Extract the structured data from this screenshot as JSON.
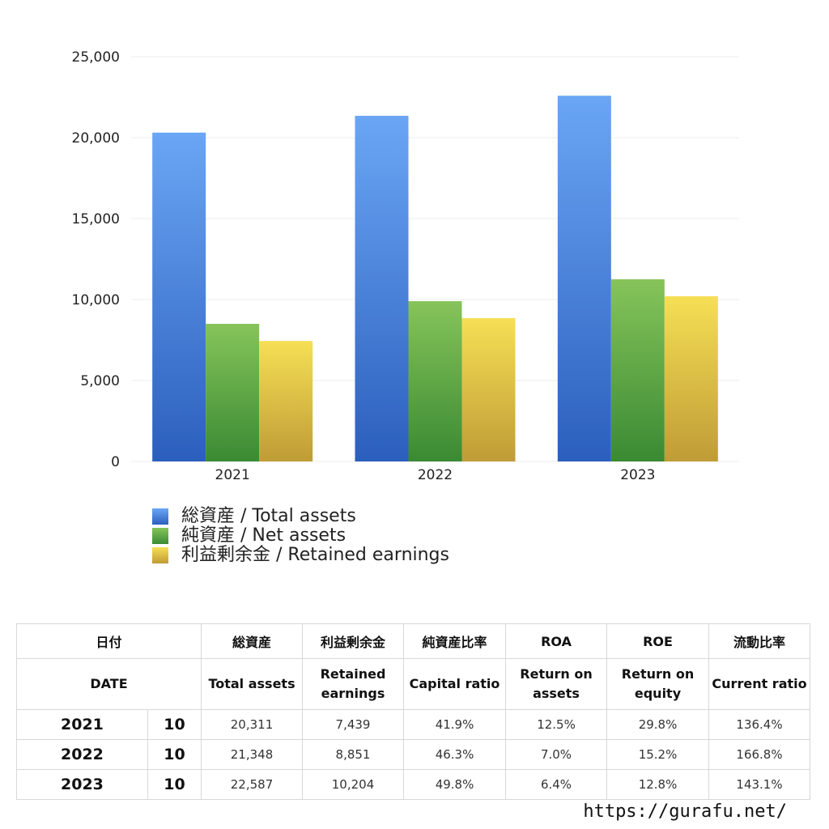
{
  "chart_data": {
    "type": "bar",
    "categories": [
      "2021",
      "2022",
      "2023"
    ],
    "series": [
      {
        "name": "総資産 / Total assets",
        "values": [
          20311,
          21348,
          22587
        ],
        "color_top": "#6aa6f5",
        "color_bottom": "#2c5fbd"
      },
      {
        "name": "純資産 / Net assets",
        "values": [
          8500,
          9900,
          11250
        ],
        "color_top": "#86c45a",
        "color_bottom": "#3a8a33"
      },
      {
        "name": "利益剰余金 / Retained earnings",
        "values": [
          7439,
          8851,
          10204
        ],
        "color_top": "#f6df55",
        "color_bottom": "#bf9c36"
      }
    ],
    "ylim": [
      0,
      25000
    ],
    "yticks": [
      0,
      5000,
      10000,
      15000,
      20000,
      25000
    ],
    "ytick_labels": [
      "0",
      "5,000",
      "10,000",
      "15,000",
      "20,000",
      "25,000"
    ],
    "grid": true,
    "legend_position": "bottom-left"
  },
  "table": {
    "headers_ja": [
      "日付",
      "総資産",
      "利益剰余金",
      "純資産比率",
      "ROA",
      "ROE",
      "流動比率"
    ],
    "headers_en": {
      "date": "DATE",
      "total_assets": "Total assets",
      "retained_l1": "Retained",
      "retained_l2": "earnings",
      "capital_ratio": "Capital ratio",
      "roa_l1": "Return on",
      "roa_l2": "assets",
      "roe_l1": "Return on",
      "roe_l2": "equity",
      "current_ratio": "Current ratio"
    },
    "rows": [
      {
        "year": "2021",
        "month": "10",
        "total_assets": "20,311",
        "retained": "7,439",
        "capital_ratio": "41.9%",
        "roa": "12.5%",
        "roe": "29.8%",
        "current_ratio": "136.4%"
      },
      {
        "year": "2022",
        "month": "10",
        "total_assets": "21,348",
        "retained": "8,851",
        "capital_ratio": "46.3%",
        "roa": "7.0%",
        "roe": "15.2%",
        "current_ratio": "166.8%"
      },
      {
        "year": "2023",
        "month": "10",
        "total_assets": "22,587",
        "retained": "10,204",
        "capital_ratio": "49.8%",
        "roa": "6.4%",
        "roe": "12.8%",
        "current_ratio": "143.1%"
      }
    ]
  },
  "footer": {
    "url": "https://gurafu.net/"
  }
}
